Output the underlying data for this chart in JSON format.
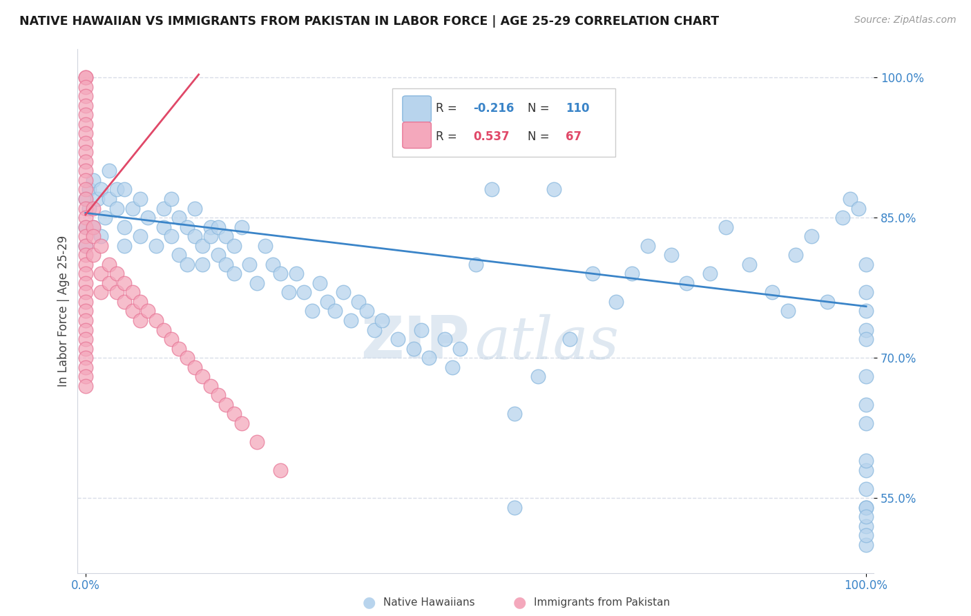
{
  "title": "NATIVE HAWAIIAN VS IMMIGRANTS FROM PAKISTAN IN LABOR FORCE | AGE 25-29 CORRELATION CHART",
  "source": "Source: ZipAtlas.com",
  "ylabel": "In Labor Force | Age 25-29",
  "xlim": [
    0.0,
    1.0
  ],
  "ylim": [
    0.47,
    1.03
  ],
  "ytick_positions": [
    0.55,
    0.7,
    0.85,
    1.0
  ],
  "ytick_labels": [
    "55.0%",
    "70.0%",
    "85.0%",
    "100.0%"
  ],
  "xtick_positions": [
    0.0,
    1.0
  ],
  "xtick_labels": [
    "0.0%",
    "100.0%"
  ],
  "blue_color": "#b8d4ed",
  "pink_color": "#f4a8bc",
  "blue_edge_color": "#8ab8de",
  "pink_edge_color": "#e87898",
  "blue_line_color": "#3a84c8",
  "pink_line_color": "#e04868",
  "R_blue": -0.216,
  "N_blue": 110,
  "R_pink": 0.537,
  "N_pink": 67,
  "legend_R_color": "#555555",
  "legend_N_color": "#555555",
  "watermark_zip_color": "#c8d8e8",
  "watermark_atlas_color": "#b8cce0",
  "grid_color": "#d8dde8",
  "spine_color": "#d0d5de",
  "blue_scatter_x": [
    0.0,
    0.0,
    0.0,
    0.005,
    0.005,
    0.01,
    0.01,
    0.015,
    0.02,
    0.02,
    0.025,
    0.03,
    0.03,
    0.04,
    0.04,
    0.05,
    0.05,
    0.05,
    0.06,
    0.07,
    0.07,
    0.08,
    0.09,
    0.1,
    0.1,
    0.11,
    0.11,
    0.12,
    0.12,
    0.13,
    0.13,
    0.14,
    0.14,
    0.15,
    0.15,
    0.16,
    0.16,
    0.17,
    0.17,
    0.18,
    0.18,
    0.19,
    0.19,
    0.2,
    0.21,
    0.22,
    0.23,
    0.24,
    0.25,
    0.26,
    0.27,
    0.28,
    0.29,
    0.3,
    0.31,
    0.32,
    0.33,
    0.34,
    0.35,
    0.36,
    0.37,
    0.38,
    0.4,
    0.42,
    0.43,
    0.44,
    0.46,
    0.47,
    0.48,
    0.5,
    0.52,
    0.55,
    0.55,
    0.58,
    0.6,
    0.62,
    0.65,
    0.68,
    0.7,
    0.72,
    0.75,
    0.77,
    0.8,
    0.82,
    0.85,
    0.88,
    0.9,
    0.91,
    0.93,
    0.95,
    0.97,
    0.98,
    0.99,
    1.0,
    1.0,
    1.0,
    1.0,
    1.0,
    1.0,
    1.0,
    1.0,
    1.0,
    1.0,
    1.0,
    1.0,
    1.0,
    1.0,
    1.0,
    1.0,
    1.0
  ],
  "blue_scatter_y": [
    0.87,
    0.84,
    0.82,
    0.88,
    0.86,
    0.89,
    0.84,
    0.87,
    0.83,
    0.88,
    0.85,
    0.87,
    0.9,
    0.86,
    0.88,
    0.84,
    0.82,
    0.88,
    0.86,
    0.83,
    0.87,
    0.85,
    0.82,
    0.86,
    0.84,
    0.83,
    0.87,
    0.81,
    0.85,
    0.8,
    0.84,
    0.83,
    0.86,
    0.82,
    0.8,
    0.84,
    0.83,
    0.81,
    0.84,
    0.8,
    0.83,
    0.79,
    0.82,
    0.84,
    0.8,
    0.78,
    0.82,
    0.8,
    0.79,
    0.77,
    0.79,
    0.77,
    0.75,
    0.78,
    0.76,
    0.75,
    0.77,
    0.74,
    0.76,
    0.75,
    0.73,
    0.74,
    0.72,
    0.71,
    0.73,
    0.7,
    0.72,
    0.69,
    0.71,
    0.8,
    0.88,
    0.54,
    0.64,
    0.68,
    0.88,
    0.72,
    0.79,
    0.76,
    0.79,
    0.82,
    0.81,
    0.78,
    0.79,
    0.84,
    0.8,
    0.77,
    0.75,
    0.81,
    0.83,
    0.76,
    0.85,
    0.87,
    0.86,
    0.65,
    0.58,
    0.56,
    0.54,
    0.52,
    0.5,
    0.77,
    0.73,
    0.8,
    0.68,
    0.63,
    0.72,
    0.59,
    0.54,
    0.53,
    0.51,
    0.75
  ],
  "pink_scatter_x": [
    0.0,
    0.0,
    0.0,
    0.0,
    0.0,
    0.0,
    0.0,
    0.0,
    0.0,
    0.0,
    0.0,
    0.0,
    0.0,
    0.0,
    0.0,
    0.0,
    0.0,
    0.0,
    0.0,
    0.0,
    0.0,
    0.0,
    0.0,
    0.0,
    0.0,
    0.0,
    0.0,
    0.0,
    0.0,
    0.0,
    0.0,
    0.0,
    0.0,
    0.0,
    0.0,
    0.01,
    0.01,
    0.01,
    0.01,
    0.02,
    0.02,
    0.02,
    0.03,
    0.03,
    0.04,
    0.04,
    0.05,
    0.05,
    0.06,
    0.06,
    0.07,
    0.07,
    0.08,
    0.09,
    0.1,
    0.11,
    0.12,
    0.13,
    0.14,
    0.15,
    0.16,
    0.17,
    0.18,
    0.19,
    0.2,
    0.22,
    0.25
  ],
  "pink_scatter_y": [
    1.0,
    1.0,
    0.99,
    0.98,
    0.97,
    0.96,
    0.95,
    0.94,
    0.93,
    0.92,
    0.91,
    0.9,
    0.89,
    0.88,
    0.87,
    0.86,
    0.85,
    0.84,
    0.83,
    0.82,
    0.81,
    0.8,
    0.79,
    0.78,
    0.77,
    0.76,
    0.75,
    0.74,
    0.73,
    0.72,
    0.71,
    0.7,
    0.69,
    0.68,
    0.67,
    0.86,
    0.84,
    0.83,
    0.81,
    0.82,
    0.79,
    0.77,
    0.8,
    0.78,
    0.79,
    0.77,
    0.78,
    0.76,
    0.77,
    0.75,
    0.76,
    0.74,
    0.75,
    0.74,
    0.73,
    0.72,
    0.71,
    0.7,
    0.69,
    0.68,
    0.67,
    0.66,
    0.65,
    0.64,
    0.63,
    0.61,
    0.58
  ],
  "blue_line_x0": 0.0,
  "blue_line_x1": 1.0,
  "blue_line_y0": 0.855,
  "blue_line_y1": 0.755,
  "pink_line_x0": 0.0,
  "pink_line_x1": 0.145,
  "pink_line_y0": 0.853,
  "pink_line_y1": 1.003
}
